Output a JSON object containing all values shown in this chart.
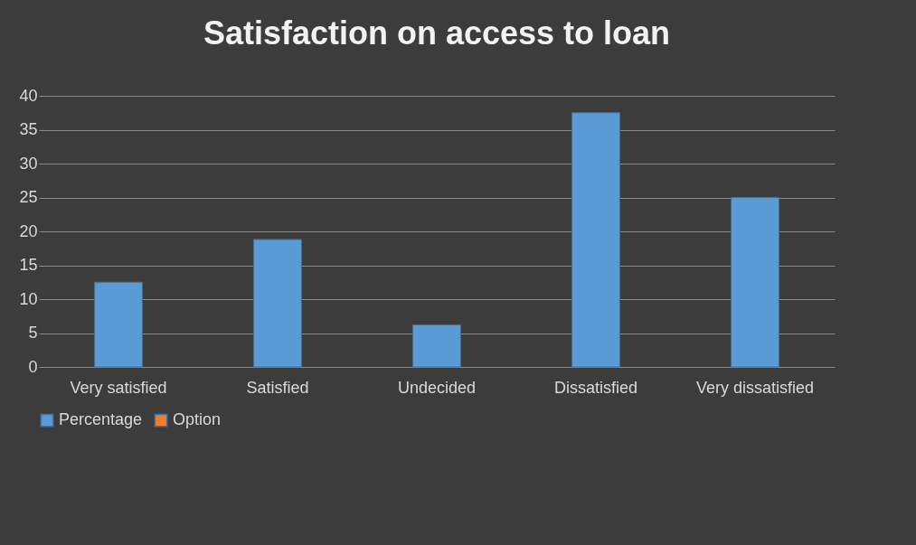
{
  "chart_data": {
    "type": "bar",
    "title": "Satisfaction on access to loan",
    "categories": [
      "Very satisfied",
      "Satisfied",
      "Undecided",
      "Dissatisfied",
      "Very dissatisfied"
    ],
    "series": [
      {
        "name": "Percentage",
        "color": "#5b9bd5",
        "values": [
          12.5,
          18.8,
          6.2,
          37.5,
          25
        ]
      },
      {
        "name": "Option",
        "color": "#ed7d31",
        "values": [
          null,
          null,
          null,
          null,
          null
        ]
      }
    ],
    "ylim": [
      0,
      40
    ],
    "yticks": [
      0,
      5,
      10,
      15,
      20,
      25,
      30,
      35,
      40
    ],
    "grid": "y",
    "legend": "bottom"
  }
}
